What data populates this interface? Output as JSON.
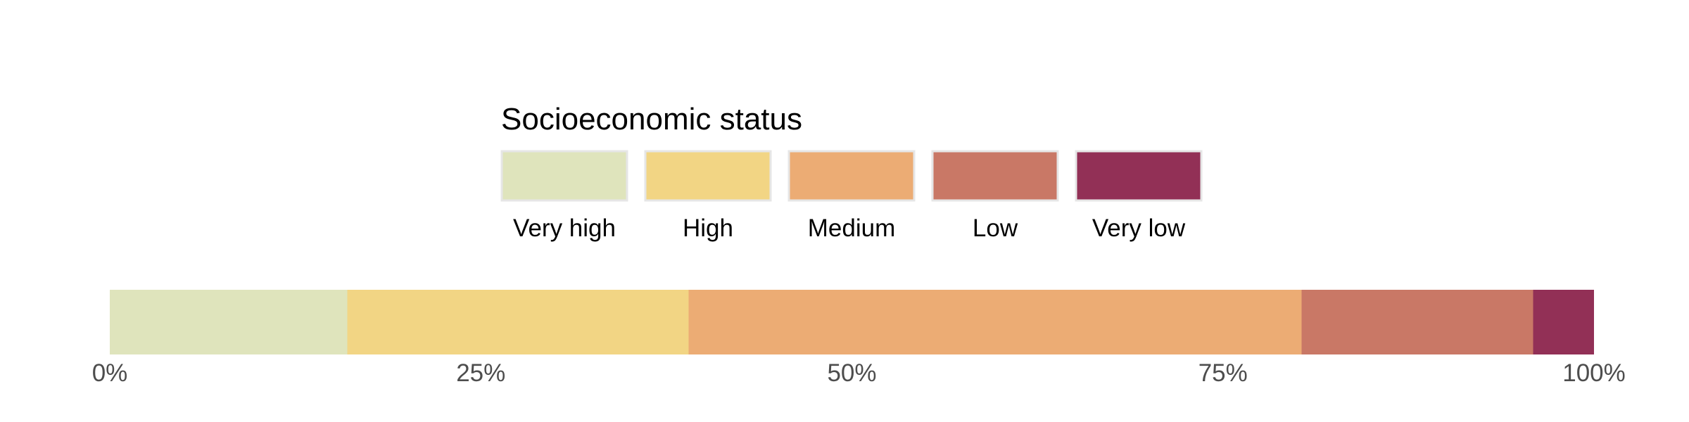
{
  "chart_data": {
    "type": "bar",
    "orientation": "horizontal",
    "stacked": true,
    "title": "",
    "xlabel": "",
    "ylabel": "",
    "xlim": [
      0,
      100
    ],
    "legend_title": "Socioeconomic status",
    "legend_position": "top",
    "grid": false,
    "categories": [
      "Very high",
      "High",
      "Medium",
      "Low",
      "Very low"
    ],
    "values": [
      16,
      23,
      41.3,
      15.6,
      4.1
    ],
    "colors": [
      "#dfe4bc",
      "#f2d584",
      "#ecac74",
      "#c97866",
      "#923056"
    ],
    "ticks": [
      {
        "value": 0,
        "label": "0%"
      },
      {
        "value": 25,
        "label": "25%"
      },
      {
        "value": 50,
        "label": "50%"
      },
      {
        "value": 75,
        "label": "75%"
      },
      {
        "value": 100,
        "label": "100%"
      }
    ]
  }
}
